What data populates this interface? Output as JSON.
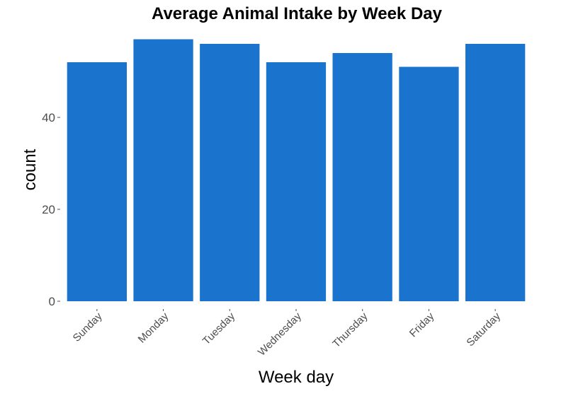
{
  "chart_data": {
    "type": "bar",
    "title": "Average Animal Intake by Week Day",
    "xlabel": "Week day",
    "ylabel": "count",
    "categories": [
      "Sunday",
      "Monday",
      "Tuesday",
      "Wednesday",
      "Thursday",
      "Friday",
      "Saturday"
    ],
    "values": [
      52,
      57,
      56,
      52,
      54,
      51,
      56
    ],
    "yticks": [
      "0",
      "20",
      "40"
    ],
    "ylim": [
      0,
      60
    ],
    "grid": false,
    "legend": "none",
    "bar_color": "#1a74ce"
  }
}
